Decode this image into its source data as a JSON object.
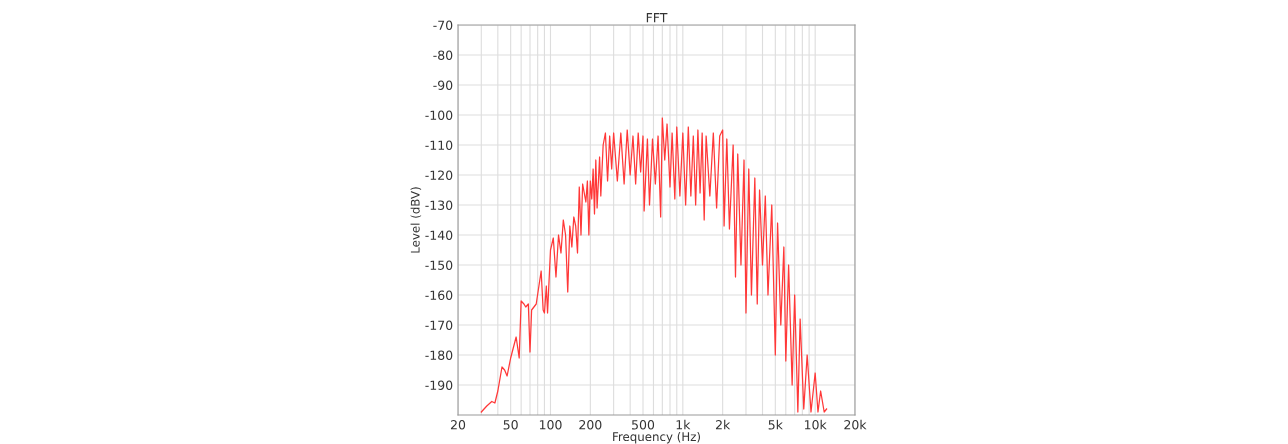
{
  "chart_data": {
    "type": "line",
    "title": "FFT",
    "xlabel": "Frequency (Hz)",
    "ylabel": "Level (dBV)",
    "log": "x",
    "grid": true,
    "marker": "none",
    "line_style": "solid",
    "xlim": [
      20,
      20000
    ],
    "ylim": [
      -200,
      -70
    ],
    "xticks": [
      20,
      50,
      100,
      200,
      500,
      {
        "value": 1000,
        "label": "1k"
      },
      {
        "value": 2000,
        "label": "2k"
      },
      {
        "value": 5000,
        "label": "5k"
      },
      {
        "value": 10000,
        "label": "10k"
      },
      {
        "value": 20000,
        "label": "20k"
      }
    ],
    "yticks": [
      -70,
      -80,
      -90,
      -100,
      -110,
      -120,
      -130,
      -140,
      -150,
      -160,
      -170,
      -180,
      -190
    ],
    "series": [
      {
        "color": "#ff3838",
        "x": [
          30,
          33,
          36,
          38,
          40,
          43,
          45,
          47,
          50,
          55,
          58,
          60,
          63,
          65,
          68,
          70,
          72,
          78,
          85,
          88,
          90,
          93,
          95,
          100,
          105,
          110,
          115,
          120,
          125,
          130,
          135,
          140,
          145,
          150,
          155,
          160,
          165,
          170,
          175,
          185,
          190,
          195,
          200,
          205,
          210,
          215,
          220,
          225,
          235,
          240,
          250,
          260,
          270,
          280,
          290,
          300,
          320,
          340,
          360,
          380,
          400,
          420,
          440,
          460,
          480,
          500,
          510,
          540,
          560,
          590,
          620,
          650,
          680,
          700,
          730,
          760,
          800,
          830,
          870,
          900,
          950,
          1000,
          1050,
          1100,
          1150,
          1200,
          1250,
          1300,
          1350,
          1400,
          1450,
          1500,
          1600,
          1700,
          1800,
          1900,
          2000,
          2050,
          2150,
          2250,
          2400,
          2500,
          2600,
          2750,
          2900,
          3000,
          3150,
          3300,
          3500,
          3650,
          3800,
          4000,
          4200,
          4400,
          4700,
          5000,
          5200,
          5500,
          5800,
          6000,
          6300,
          6700,
          7000,
          7400,
          7700,
          8200,
          8700,
          9300,
          10000,
          10500,
          11000,
          11700,
          12200
        ],
        "values": [
          -199,
          -197,
          -195.5,
          -196,
          -192,
          -184,
          -185,
          -187,
          -181,
          -174,
          -181,
          -162,
          -163,
          -164,
          -163,
          -179,
          -165,
          -163,
          -152,
          -165,
          -166,
          -157,
          -166,
          -145,
          -141,
          -154,
          -140,
          -146,
          -135,
          -140,
          -159,
          -137,
          -144,
          -134,
          -137,
          -146,
          -124,
          -140,
          -123,
          -129,
          -122,
          -140,
          -122,
          -128,
          -118,
          -133,
          -115,
          -131,
          -114,
          -127,
          -110,
          -106,
          -122,
          -107,
          -118,
          -106,
          -122,
          -106,
          -123,
          -105,
          -120,
          -107,
          -123,
          -106,
          -119,
          -107,
          -132,
          -108,
          -130,
          -108,
          -123,
          -107,
          -134,
          -101,
          -115,
          -103,
          -124,
          -106,
          -128,
          -104,
          -127,
          -106,
          -130,
          -104,
          -127,
          -107,
          -130,
          -105,
          -126,
          -106,
          -135,
          -107,
          -127,
          -106,
          -131,
          -107,
          -105,
          -137,
          -108,
          -138,
          -110,
          -154,
          -113,
          -150,
          -115,
          -166,
          -118,
          -160,
          -121,
          -163,
          -125,
          -150,
          -127,
          -160,
          -130,
          -180,
          -136,
          -170,
          -144,
          -182,
          -150,
          -190,
          -160,
          -199,
          -168,
          -198,
          -180,
          -199,
          -186,
          -199,
          -192,
          -199,
          -198
        ]
      }
    ]
  }
}
